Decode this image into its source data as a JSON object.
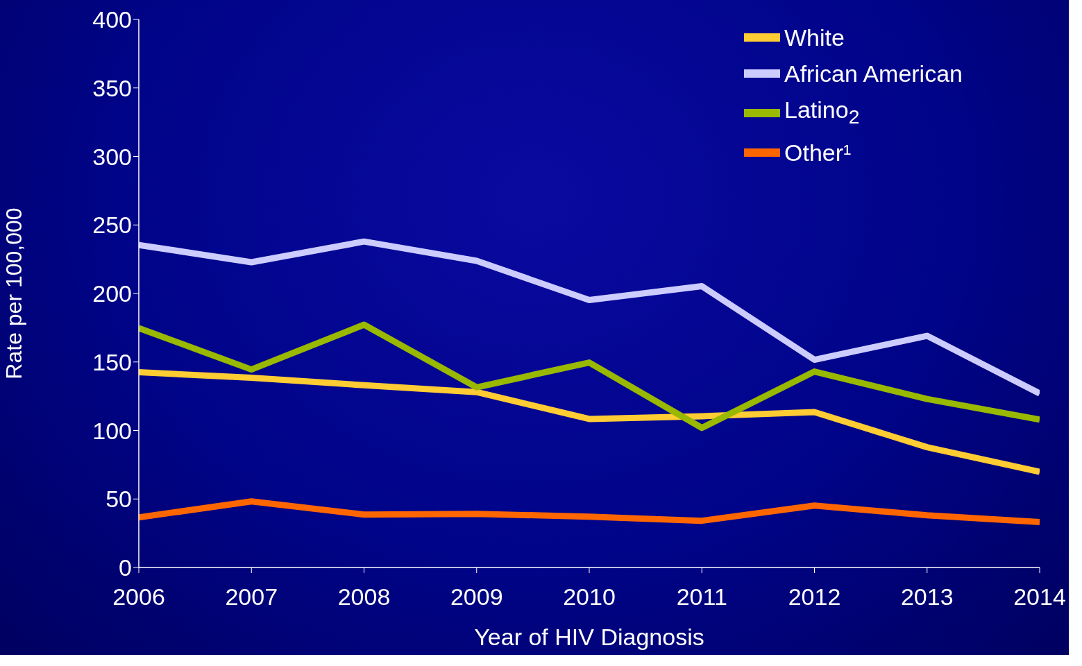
{
  "chart_data": {
    "type": "line",
    "xlabel": "Year of HIV Diagnosis",
    "ylabel": "Rate per 100,000",
    "x": [
      2006,
      2007,
      2008,
      2009,
      2010,
      2011,
      2012,
      2013,
      2014
    ],
    "series": [
      {
        "name": "White",
        "color": "#ffcc33",
        "values": [
          142.5,
          138.5,
          133,
          128,
          108.4,
          110.4,
          113.4,
          87.8,
          69.8
        ]
      },
      {
        "name": "African American",
        "color": "#ccccff",
        "values": [
          235.4,
          222.8,
          237.9,
          223.8,
          195.2,
          205.3,
          151.6,
          169.1,
          127
        ]
      },
      {
        "name": "Latino$_{2}$",
        "color": "#99b800",
        "values": [
          174.7,
          144.5,
          177.2,
          131.5,
          149.6,
          101.9,
          143,
          123,
          107.9
        ]
      },
      {
        "name": "Other¹",
        "color": "#ff6600",
        "values": [
          36.6,
          48.2,
          38.6,
          39.1,
          37.1,
          34.1,
          45.2,
          38.1,
          33.1
        ]
      }
    ],
    "xlim": [
      2006,
      2014
    ],
    "xticks": [
      2006,
      2007,
      2008,
      2009,
      2010,
      2011,
      2012,
      2013,
      2014
    ],
    "ylim": [
      0,
      400
    ],
    "yticks": [
      0,
      50,
      100,
      150,
      200,
      250,
      300,
      350,
      400
    ],
    "grid": false,
    "legend": "top right",
    "marker": "none",
    "line_style": "solid"
  }
}
